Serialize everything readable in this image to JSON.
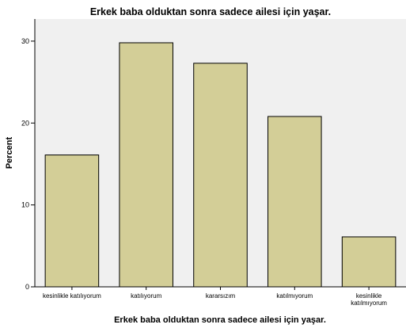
{
  "chart_data": {
    "type": "bar",
    "title": "Erkek baba olduktan sonra sadece ailesi için yaşar.",
    "xlabel": "Erkek baba olduktan sonra sadece ailesi için yaşar.",
    "ylabel": "Percent",
    "categories": [
      [
        "kesinlikle katılıyorum"
      ],
      [
        "katılıyorum"
      ],
      [
        "kararsızım"
      ],
      [
        "katılmıyorum"
      ],
      [
        "kesinlikle",
        "katılmıyorum"
      ]
    ],
    "values": [
      16.1,
      29.8,
      27.3,
      20.8,
      6.1
    ],
    "ylim": [
      0,
      32.7
    ],
    "yticks": [
      0,
      10,
      20,
      30
    ],
    "grid": false,
    "colors": {
      "plot_background": "#f0f0f0",
      "bar_fill": "#d3ce97",
      "bar_stroke": "#000000",
      "axis": "#000000"
    }
  }
}
